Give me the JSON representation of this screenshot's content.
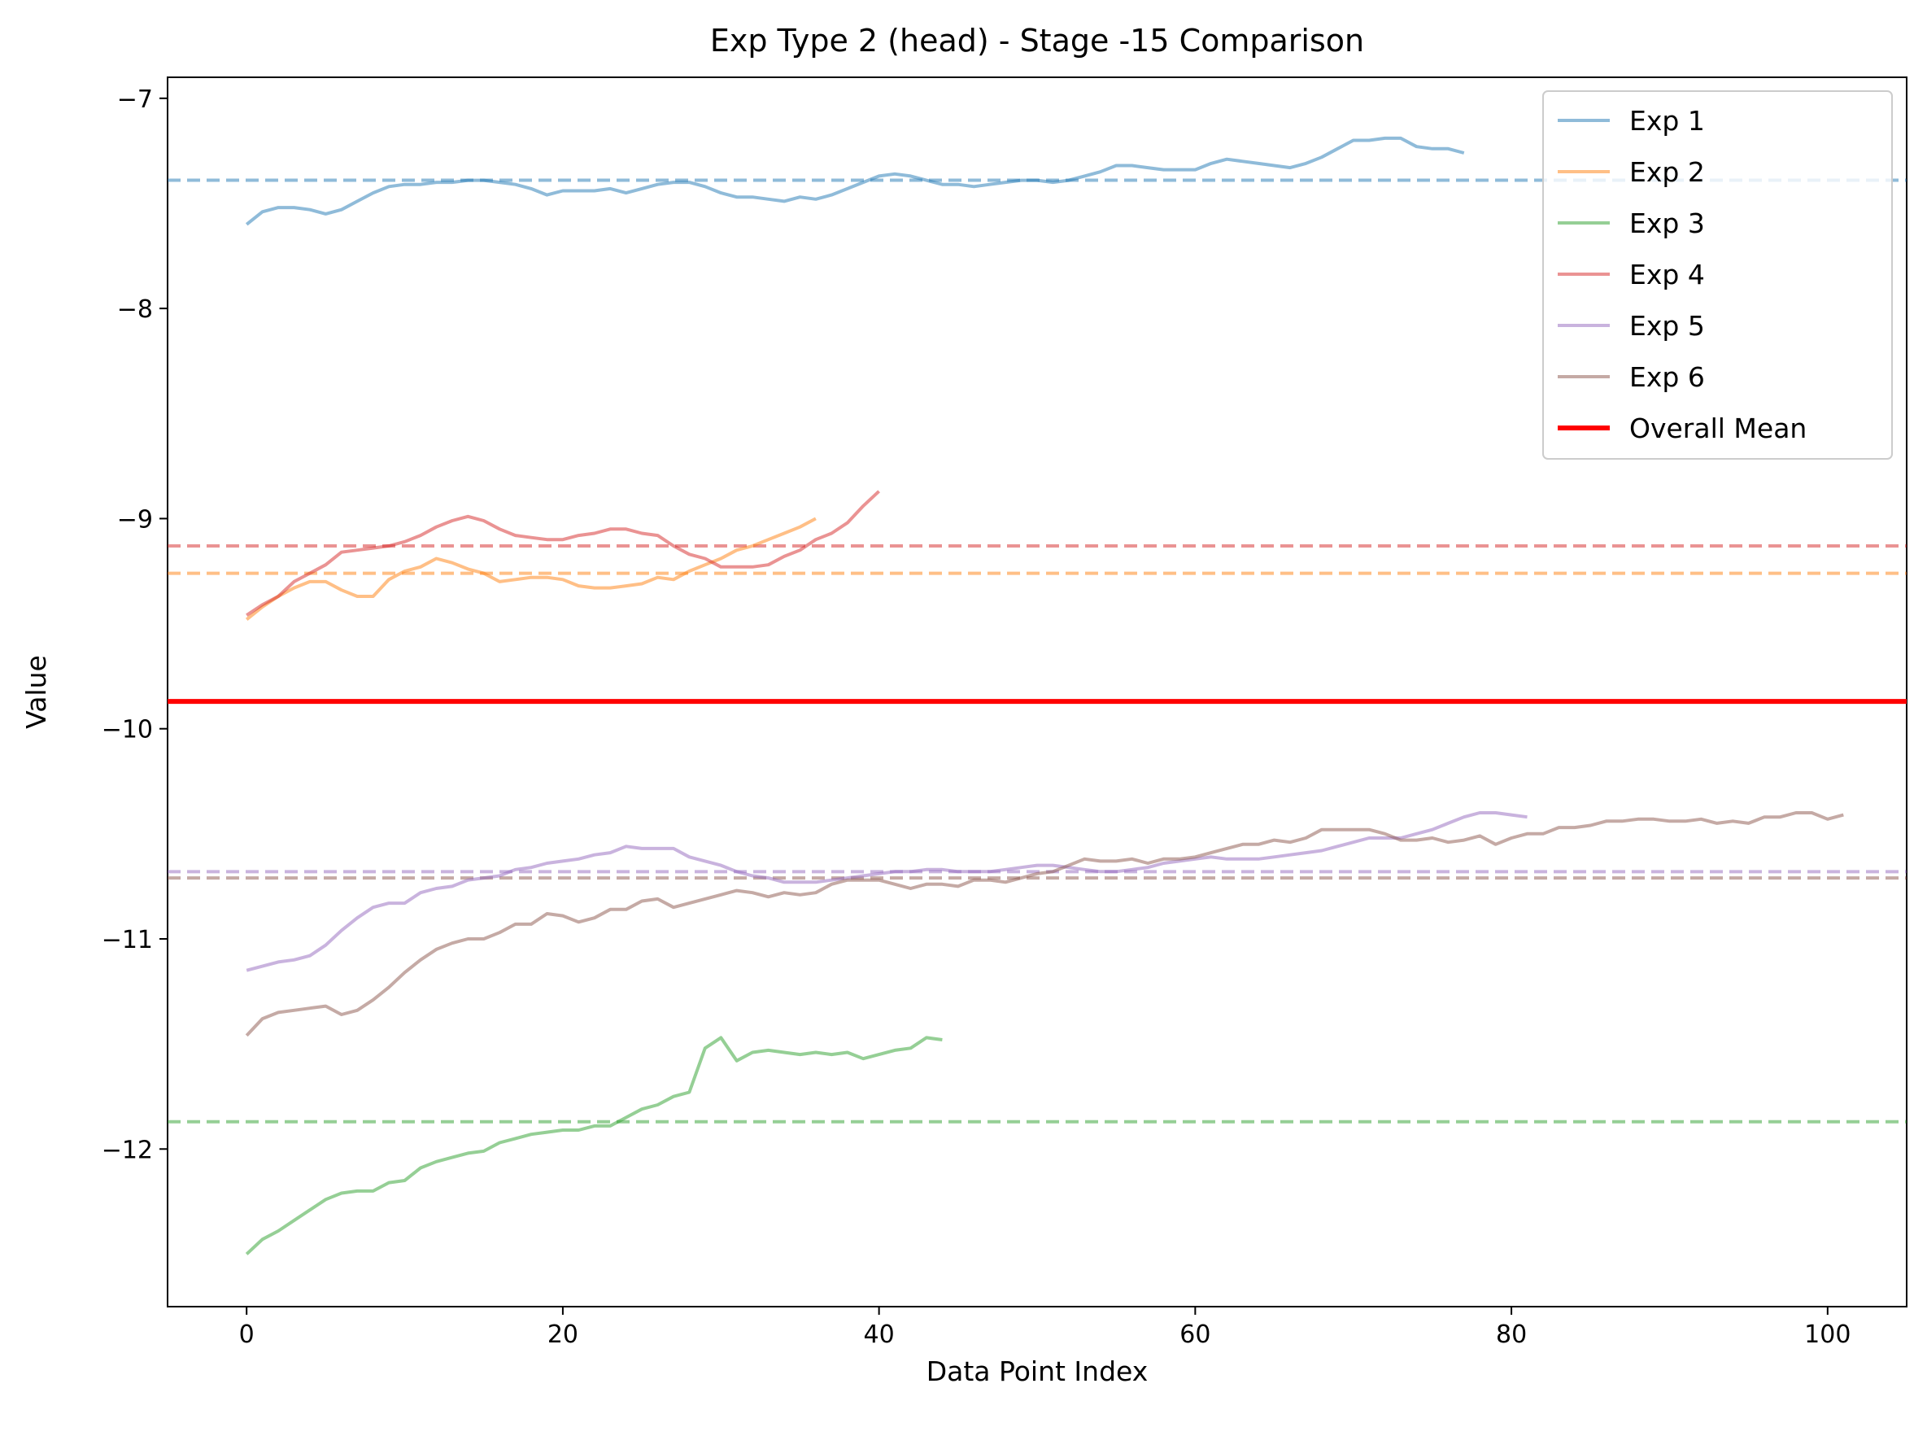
{
  "chart_data": {
    "type": "line",
    "title": "Exp Type 2 (head) - Stage -15 Comparison",
    "xlabel": "Data Point Index",
    "ylabel": "Value",
    "xlim": [
      -5,
      105
    ],
    "ylim": [
      -12.75,
      -6.9
    ],
    "xticks": [
      0,
      20,
      40,
      60,
      80,
      100
    ],
    "yticks": [
      -12,
      -11,
      -10,
      -9,
      -8,
      -7
    ],
    "grid": false,
    "legend_position": "top-right",
    "overall_mean": {
      "name": "Overall Mean",
      "value": -9.87,
      "color": "#ff0000"
    },
    "series": [
      {
        "name": "Exp 1",
        "color": "#1f77b4",
        "mean": -7.39,
        "values": [
          -7.6,
          -7.54,
          -7.52,
          -7.52,
          -7.53,
          -7.55,
          -7.53,
          -7.49,
          -7.45,
          -7.42,
          -7.41,
          -7.41,
          -7.4,
          -7.4,
          -7.39,
          -7.39,
          -7.4,
          -7.41,
          -7.43,
          -7.46,
          -7.44,
          -7.44,
          -7.44,
          -7.43,
          -7.45,
          -7.43,
          -7.41,
          -7.4,
          -7.4,
          -7.42,
          -7.45,
          -7.47,
          -7.47,
          -7.48,
          -7.49,
          -7.47,
          -7.48,
          -7.46,
          -7.43,
          -7.4,
          -7.37,
          -7.36,
          -7.37,
          -7.39,
          -7.41,
          -7.41,
          -7.42,
          -7.41,
          -7.4,
          -7.39,
          -7.39,
          -7.4,
          -7.39,
          -7.37,
          -7.35,
          -7.32,
          -7.32,
          -7.33,
          -7.34,
          -7.34,
          -7.34,
          -7.31,
          -7.29,
          -7.3,
          -7.31,
          -7.32,
          -7.33,
          -7.31,
          -7.28,
          -7.24,
          -7.2,
          -7.2,
          -7.19,
          -7.19,
          -7.23,
          -7.24,
          -7.24,
          -7.26
        ]
      },
      {
        "name": "Exp 2",
        "color": "#ff7f0e",
        "mean": -9.26,
        "values": [
          -9.48,
          -9.42,
          -9.37,
          -9.33,
          -9.3,
          -9.3,
          -9.34,
          -9.37,
          -9.37,
          -9.29,
          -9.25,
          -9.23,
          -9.19,
          -9.21,
          -9.24,
          -9.26,
          -9.3,
          -9.29,
          -9.28,
          -9.28,
          -9.29,
          -9.32,
          -9.33,
          -9.33,
          -9.32,
          -9.31,
          -9.28,
          -9.29,
          -9.25,
          -9.22,
          -9.19,
          -9.15,
          -9.13,
          -9.1,
          -9.07,
          -9.04,
          -9.0
        ]
      },
      {
        "name": "Exp 3",
        "color": "#2ca02c",
        "mean": -11.87,
        "values": [
          -12.5,
          -12.43,
          -12.39,
          -12.34,
          -12.29,
          -12.24,
          -12.21,
          -12.2,
          -12.2,
          -12.16,
          -12.15,
          -12.09,
          -12.06,
          -12.04,
          -12.02,
          -12.01,
          -11.97,
          -11.95,
          -11.93,
          -11.92,
          -11.91,
          -11.91,
          -11.89,
          -11.89,
          -11.85,
          -11.81,
          -11.79,
          -11.75,
          -11.73,
          -11.52,
          -11.47,
          -11.58,
          -11.54,
          -11.53,
          -11.54,
          -11.55,
          -11.54,
          -11.55,
          -11.54,
          -11.57,
          -11.55,
          -11.53,
          -11.52,
          -11.47,
          -11.48
        ]
      },
      {
        "name": "Exp 4",
        "color": "#d62728",
        "mean": -9.13,
        "values": [
          -9.46,
          -9.41,
          -9.37,
          -9.3,
          -9.26,
          -9.22,
          -9.16,
          -9.15,
          -9.14,
          -9.13,
          -9.11,
          -9.08,
          -9.04,
          -9.01,
          -8.99,
          -9.01,
          -9.05,
          -9.08,
          -9.09,
          -9.1,
          -9.1,
          -9.08,
          -9.07,
          -9.05,
          -9.05,
          -9.07,
          -9.08,
          -9.13,
          -9.17,
          -9.19,
          -9.23,
          -9.23,
          -9.23,
          -9.22,
          -9.18,
          -9.15,
          -9.1,
          -9.07,
          -9.02,
          -8.94,
          -8.87
        ]
      },
      {
        "name": "Exp 5",
        "color": "#9467bd",
        "mean": -10.68,
        "values": [
          -11.15,
          -11.13,
          -11.11,
          -11.1,
          -11.08,
          -11.03,
          -10.96,
          -10.9,
          -10.85,
          -10.83,
          -10.83,
          -10.78,
          -10.76,
          -10.75,
          -10.72,
          -10.71,
          -10.7,
          -10.67,
          -10.66,
          -10.64,
          -10.63,
          -10.62,
          -10.6,
          -10.59,
          -10.56,
          -10.57,
          -10.57,
          -10.57,
          -10.61,
          -10.63,
          -10.65,
          -10.68,
          -10.7,
          -10.71,
          -10.73,
          -10.73,
          -10.73,
          -10.72,
          -10.71,
          -10.7,
          -10.69,
          -10.68,
          -10.68,
          -10.67,
          -10.67,
          -10.68,
          -10.68,
          -10.68,
          -10.67,
          -10.66,
          -10.65,
          -10.65,
          -10.66,
          -10.67,
          -10.68,
          -10.68,
          -10.67,
          -10.66,
          -10.64,
          -10.63,
          -10.62,
          -10.61,
          -10.62,
          -10.62,
          -10.62,
          -10.61,
          -10.6,
          -10.59,
          -10.58,
          -10.56,
          -10.54,
          -10.52,
          -10.52,
          -10.52,
          -10.5,
          -10.48,
          -10.45,
          -10.42,
          -10.4,
          -10.4,
          -10.41,
          -10.42
        ]
      },
      {
        "name": "Exp 6",
        "color": "#8c564b",
        "mean": -10.71,
        "values": [
          -11.46,
          -11.38,
          -11.35,
          -11.34,
          -11.33,
          -11.32,
          -11.36,
          -11.34,
          -11.29,
          -11.23,
          -11.16,
          -11.1,
          -11.05,
          -11.02,
          -11.0,
          -11.0,
          -10.97,
          -10.93,
          -10.93,
          -10.88,
          -10.89,
          -10.92,
          -10.9,
          -10.86,
          -10.86,
          -10.82,
          -10.81,
          -10.85,
          -10.83,
          -10.81,
          -10.79,
          -10.77,
          -10.78,
          -10.8,
          -10.78,
          -10.79,
          -10.78,
          -10.74,
          -10.72,
          -10.72,
          -10.72,
          -10.74,
          -10.76,
          -10.74,
          -10.74,
          -10.75,
          -10.72,
          -10.72,
          -10.73,
          -10.71,
          -10.69,
          -10.68,
          -10.65,
          -10.62,
          -10.63,
          -10.63,
          -10.62,
          -10.64,
          -10.62,
          -10.62,
          -10.61,
          -10.59,
          -10.57,
          -10.55,
          -10.55,
          -10.53,
          -10.54,
          -10.52,
          -10.48,
          -10.48,
          -10.48,
          -10.48,
          -10.5,
          -10.53,
          -10.53,
          -10.52,
          -10.54,
          -10.53,
          -10.51,
          -10.55,
          -10.52,
          -10.5,
          -10.5,
          -10.47,
          -10.47,
          -10.46,
          -10.44,
          -10.44,
          -10.43,
          -10.43,
          -10.44,
          -10.44,
          -10.43,
          -10.45,
          -10.44,
          -10.45,
          -10.42,
          -10.42,
          -10.4,
          -10.4,
          -10.43,
          -10.41
        ]
      }
    ]
  }
}
